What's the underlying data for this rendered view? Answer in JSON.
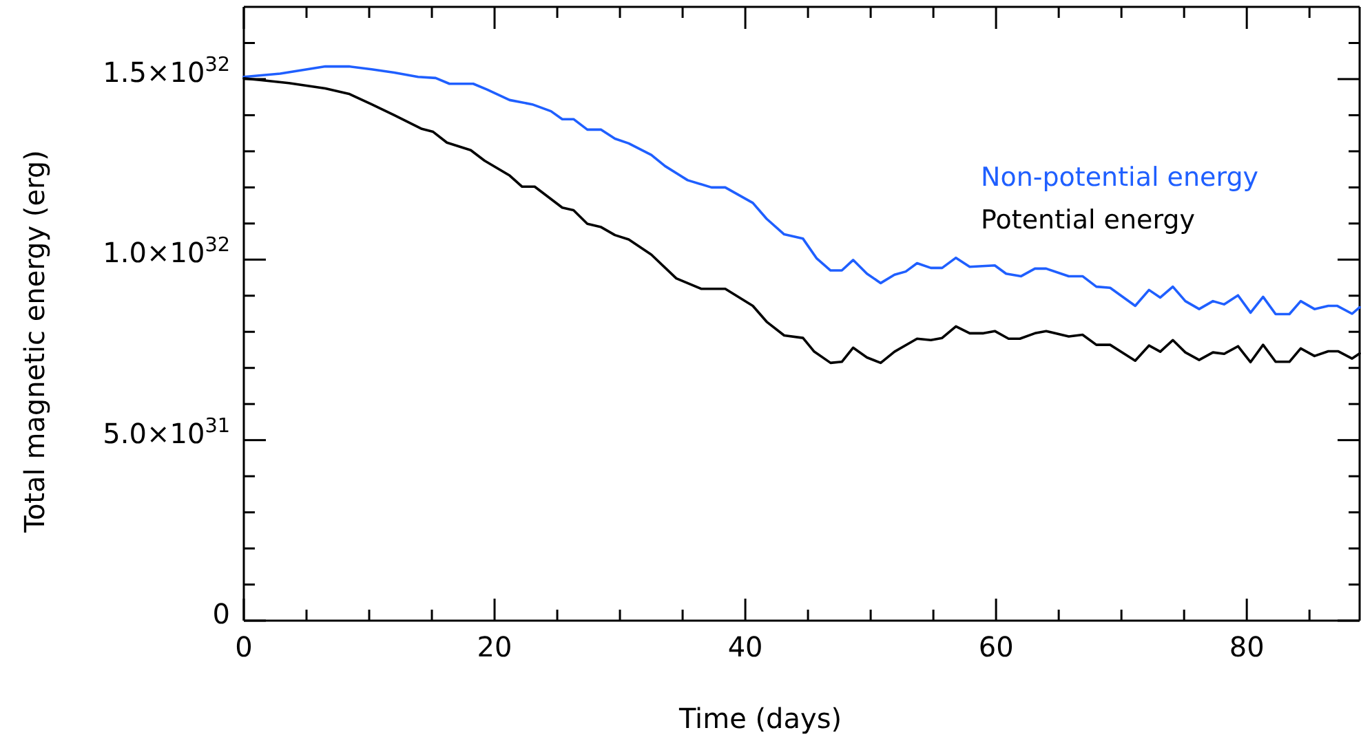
{
  "chart_data": {
    "type": "line",
    "xlabel": "Time (days)",
    "ylabel": "Total magnetic energy (erg)",
    "legend": "right",
    "line_style": "solid",
    "marker": "none",
    "grid": false,
    "xlim": [
      0,
      89
    ],
    "ylim": [
      0,
      1.7e+32
    ],
    "xticks": [
      0,
      {
        "value": 5,
        "label": null
      },
      {
        "value": 10,
        "label": null
      },
      {
        "value": 15,
        "label": null
      },
      20,
      {
        "value": 25,
        "label": null
      },
      {
        "value": 30,
        "label": null
      },
      {
        "value": 35,
        "label": null
      },
      40,
      {
        "value": 45,
        "label": null
      },
      {
        "value": 50,
        "label": null
      },
      {
        "value": 55,
        "label": null
      },
      60,
      {
        "value": 65,
        "label": null
      },
      {
        "value": 70,
        "label": null
      },
      {
        "value": 75,
        "label": null
      },
      80,
      {
        "value": 85,
        "label": null
      }
    ],
    "yticks": [
      {
        "value": 0,
        "label": "0"
      },
      {
        "value": 1e+31,
        "label": null
      },
      {
        "value": 2e+31,
        "label": null
      },
      {
        "value": 3e+31,
        "label": null
      },
      {
        "value": 4e+31,
        "label": null
      },
      {
        "value": 5e+31,
        "label": "5.0×10$^{31}$"
      },
      {
        "value": 6e+31,
        "label": null
      },
      {
        "value": 7e+31,
        "label": null
      },
      {
        "value": 8e+31,
        "label": null
      },
      {
        "value": 9e+31,
        "label": null
      },
      {
        "value": 1e+32,
        "label": "1.0×10$^{32}$"
      },
      {
        "value": 1.1e+32,
        "label": null
      },
      {
        "value": 1.2e+32,
        "label": null
      },
      {
        "value": 1.3e+32,
        "label": null
      },
      {
        "value": 1.4e+32,
        "label": null
      },
      {
        "value": 1.5e+32,
        "label": "1.5×10$^{32}$"
      },
      {
        "value": 1.6e+32,
        "label": null
      }
    ],
    "series": [
      {
        "name": "Non-potential energy",
        "color": "#1f5fff",
        "x": [
          0,
          2.9,
          4.7,
          6.5,
          8.4,
          10.2,
          12.0,
          13.9,
          15.3,
          16.4,
          18.3,
          19.4,
          21.2,
          23.0,
          24.5,
          25.4,
          26.3,
          27.4,
          28.5,
          29.6,
          30.7,
          32.5,
          33.6,
          35.4,
          37.3,
          38.4,
          40.6,
          41.7,
          43.1,
          44.6,
          45.7,
          46.8,
          47.7,
          48.6,
          49.7,
          50.8,
          51.9,
          52.8,
          53.7,
          54.8,
          55.7,
          56.8,
          57.9,
          59.9,
          60.8,
          62.0,
          63.1,
          64.0,
          65.8,
          66.9,
          68.0,
          69.1,
          71.1,
          72.2,
          73.1,
          74.1,
          75.1,
          76.2,
          77.3,
          78.2,
          79.3,
          80.3,
          81.3,
          82.3,
          83.4,
          84.3,
          85.4,
          86.5,
          87.2,
          88.4,
          89
        ],
        "values": [
          1.506e+32,
          1.515e+32,
          1.525e+32,
          1.535e+32,
          1.535e+32,
          1.527e+32,
          1.518e+32,
          1.506e+32,
          1.503e+32,
          1.487e+32,
          1.487e+32,
          1.471e+32,
          1.442e+32,
          1.43e+32,
          1.411e+32,
          1.389e+32,
          1.389e+32,
          1.36e+32,
          1.36e+32,
          1.335e+32,
          1.322e+32,
          1.29e+32,
          1.259e+32,
          1.22e+32,
          1.2e+32,
          1.2e+32,
          1.157e+32,
          1.113e+32,
          1.07e+32,
          1.058e+32,
          1.003e+32,
          9.7e+31,
          9.7e+31,
          9.99e+31,
          9.61e+31,
          9.35e+31,
          9.58e+31,
          9.67e+31,
          9.9e+31,
          9.77e+31,
          9.77e+31,
          1.005e+32,
          9.8e+31,
          9.84e+31,
          9.61e+31,
          9.54e+31,
          9.75e+31,
          9.75e+31,
          9.54e+31,
          9.54e+31,
          9.25e+31,
          9.22e+31,
          8.72e+31,
          9.16e+31,
          8.95e+31,
          9.25e+31,
          8.85e+31,
          8.63e+31,
          8.85e+31,
          8.76e+31,
          9.01e+31,
          8.53e+31,
          8.97e+31,
          8.49e+31,
          8.49e+31,
          8.85e+31,
          8.63e+31,
          8.72e+31,
          8.72e+31,
          8.5e+31,
          8.68e+31
        ]
      },
      {
        "name": "Potential energy",
        "color": "#000000",
        "x": [
          0,
          1.4,
          3.6,
          6.5,
          8.4,
          10.2,
          12.0,
          14.2,
          15.1,
          16.2,
          18.1,
          19.2,
          21.2,
          22.2,
          23.2,
          25.4,
          26.3,
          27.4,
          28.5,
          29.6,
          30.7,
          32.5,
          34.5,
          36.5,
          38.4,
          40.6,
          41.7,
          43.1,
          44.6,
          45.5,
          46.8,
          47.7,
          48.6,
          49.7,
          50.8,
          51.9,
          53.7,
          54.8,
          55.7,
          56.8,
          57.9,
          59.0,
          59.9,
          61.0,
          61.9,
          63.1,
          64.0,
          65.8,
          66.9,
          68.0,
          69.1,
          71.1,
          72.2,
          73.1,
          74.1,
          75.1,
          76.2,
          77.3,
          78.2,
          79.3,
          80.3,
          81.3,
          82.3,
          83.4,
          84.3,
          85.4,
          86.5,
          87.3,
          88.4,
          89
        ],
        "values": [
          1.502e+32,
          1.497e+32,
          1.489e+32,
          1.474e+32,
          1.459e+32,
          1.43e+32,
          1.4e+32,
          1.362e+32,
          1.354e+32,
          1.324e+32,
          1.303e+32,
          1.274e+32,
          1.233e+32,
          1.202e+32,
          1.202e+32,
          1.144e+32,
          1.137e+32,
          1.099e+32,
          1.09e+32,
          1.068e+32,
          1.056e+32,
          1.014e+32,
          9.48e+31,
          9.19e+31,
          9.19e+31,
          8.72e+31,
          8.28e+31,
          7.9e+31,
          7.83e+31,
          7.45e+31,
          7.14e+31,
          7.17e+31,
          7.56e+31,
          7.29e+31,
          7.14e+31,
          7.45e+31,
          7.81e+31,
          7.77e+31,
          7.83e+31,
          8.15e+31,
          7.96e+31,
          7.96e+31,
          8.02e+31,
          7.81e+31,
          7.81e+31,
          7.96e+31,
          8.02e+31,
          7.87e+31,
          7.92e+31,
          7.64e+31,
          7.64e+31,
          7.2e+31,
          7.62e+31,
          7.45e+31,
          7.77e+31,
          7.43e+31,
          7.22e+31,
          7.43e+31,
          7.39e+31,
          7.6e+31,
          7.16e+31,
          7.64e+31,
          7.17e+31,
          7.17e+31,
          7.54e+31,
          7.33e+31,
          7.46e+31,
          7.46e+31,
          7.26e+31,
          7.4e+31
        ]
      }
    ]
  }
}
